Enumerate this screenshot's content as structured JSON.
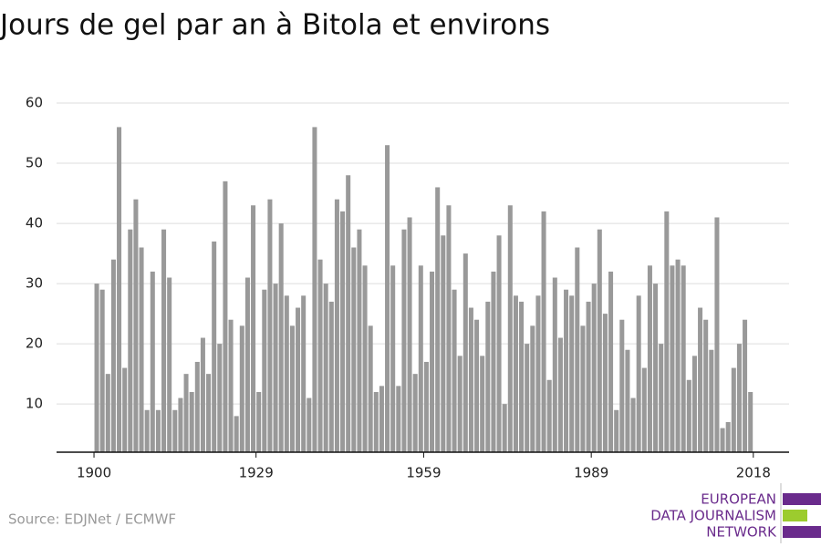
{
  "chart_data": {
    "type": "bar",
    "title": "Jours de gel par an à Bitola et environs",
    "source": "Source: EDJNet / ECMWF",
    "logo": [
      "EUROPEAN",
      "DATA JOURNALISM",
      "NETWORK"
    ],
    "color": "#999999",
    "x": [
      1901,
      1902,
      1903,
      1904,
      1905,
      1906,
      1907,
      1908,
      1909,
      1910,
      1911,
      1912,
      1913,
      1914,
      1915,
      1916,
      1917,
      1918,
      1919,
      1920,
      1921,
      1922,
      1923,
      1924,
      1925,
      1926,
      1927,
      1928,
      1929,
      1930,
      1931,
      1932,
      1933,
      1934,
      1935,
      1936,
      1937,
      1938,
      1939,
      1940,
      1941,
      1942,
      1943,
      1944,
      1945,
      1946,
      1947,
      1948,
      1949,
      1950,
      1951,
      1952,
      1953,
      1954,
      1955,
      1956,
      1957,
      1958,
      1959,
      1960,
      1961,
      1962,
      1963,
      1964,
      1965,
      1966,
      1967,
      1968,
      1969,
      1970,
      1971,
      1972,
      1973,
      1974,
      1975,
      1976,
      1977,
      1978,
      1979,
      1980,
      1981,
      1982,
      1983,
      1984,
      1985,
      1986,
      1987,
      1988,
      1989,
      1990,
      1991,
      1992,
      1993,
      1994,
      1995,
      1996,
      1997,
      1998,
      1999,
      2000,
      2001,
      2002,
      2003,
      2004,
      2005,
      2006,
      2007,
      2008,
      2009,
      2010,
      2011,
      2012,
      2013,
      2014,
      2015,
      2016,
      2017,
      2018
    ],
    "values": [
      30,
      29,
      15,
      34,
      56,
      16,
      39,
      44,
      36,
      9,
      32,
      9,
      39,
      31,
      9,
      11,
      15,
      12,
      17,
      21,
      15,
      37,
      20,
      47,
      24,
      8,
      23,
      31,
      43,
      12,
      29,
      44,
      30,
      40,
      28,
      23,
      26,
      28,
      11,
      56,
      34,
      30,
      27,
      44,
      42,
      48,
      36,
      39,
      33,
      23,
      12,
      13,
      53,
      33,
      13,
      39,
      41,
      15,
      33,
      17,
      32,
      46,
      38,
      43,
      29,
      18,
      35,
      26,
      24,
      18,
      27,
      32,
      38,
      10,
      43,
      28,
      27,
      20,
      23,
      28,
      42,
      14,
      31,
      21,
      29,
      28,
      36,
      23,
      27,
      30,
      39,
      25,
      32,
      9,
      24,
      19,
      11,
      28,
      16,
      33,
      30,
      20,
      42,
      33,
      34,
      33,
      14,
      18,
      26,
      24,
      19,
      41,
      6,
      7,
      16,
      20,
      24,
      12
    ],
    "xlim": [
      1893.3,
      2024.4
    ],
    "xticks": [
      1900,
      1929,
      1959,
      1989,
      2018
    ],
    "ylim": [
      2,
      60
    ],
    "yticks": [
      10,
      20,
      30,
      40,
      50,
      60
    ],
    "grid": true
  }
}
